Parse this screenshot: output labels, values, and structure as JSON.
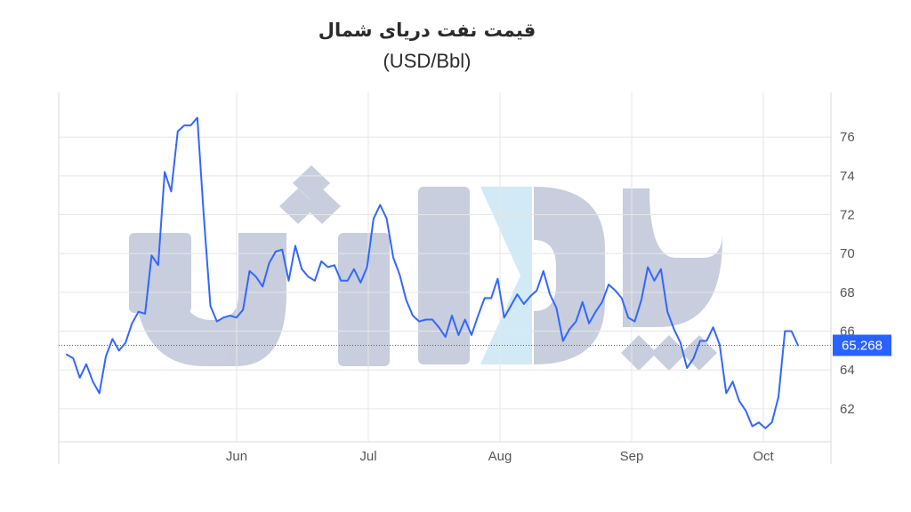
{
  "chart_data": {
    "type": "line",
    "title": "قیمت نفت دریای شمال",
    "subtitle": "(USD/Bbl)",
    "xlabel": "",
    "ylabel": "",
    "x_tick_labels": [
      "Jun",
      "Jul",
      "Aug",
      "Sep",
      "Oct"
    ],
    "y_ticks": [
      62,
      64,
      66,
      68,
      70,
      72,
      74,
      76
    ],
    "ylim": [
      60.3,
      78.3
    ],
    "grid": true,
    "y_axis_side": "right",
    "last_value_label": "65.268",
    "watermark": "یاداش",
    "line_color": "#3366ff",
    "label_color": "#2962ff",
    "series": [
      {
        "values": [
          64.8,
          64.6,
          63.6,
          64.3,
          63.4,
          62.8,
          64.7,
          65.6,
          65.0,
          65.4,
          66.4,
          67.0,
          66.9,
          69.9,
          69.4,
          74.2,
          73.2,
          76.3,
          76.6,
          76.6,
          77.0,
          71.9,
          67.3,
          66.5,
          66.7,
          66.8,
          66.7,
          67.1,
          69.1,
          68.8,
          68.3,
          69.5,
          70.1,
          70.2,
          68.6,
          70.4,
          69.2,
          68.8,
          68.6,
          69.6,
          69.3,
          69.4,
          68.6,
          68.6,
          69.2,
          68.5,
          69.3,
          71.8,
          72.5,
          71.8,
          69.8,
          68.9,
          67.6,
          66.8,
          66.5,
          66.6,
          66.6,
          66.2,
          65.7,
          66.8,
          65.8,
          66.6,
          65.8,
          66.8,
          67.7,
          67.7,
          68.7,
          66.7,
          67.3,
          67.9,
          67.4,
          67.8,
          68.1,
          69.1,
          67.9,
          67.2,
          65.5,
          66.1,
          66.5,
          67.5,
          66.4,
          67.0,
          67.5,
          68.4,
          68.1,
          67.7,
          66.7,
          66.5,
          67.6,
          69.3,
          68.6,
          69.2,
          67.0,
          66.1,
          65.4,
          64.1,
          64.6,
          65.5,
          65.5,
          66.2,
          65.3,
          62.8,
          63.4,
          62.4,
          61.9,
          61.1,
          61.3,
          61.0,
          61.3,
          62.6,
          66.0,
          66.0,
          65.27
        ]
      }
    ]
  }
}
